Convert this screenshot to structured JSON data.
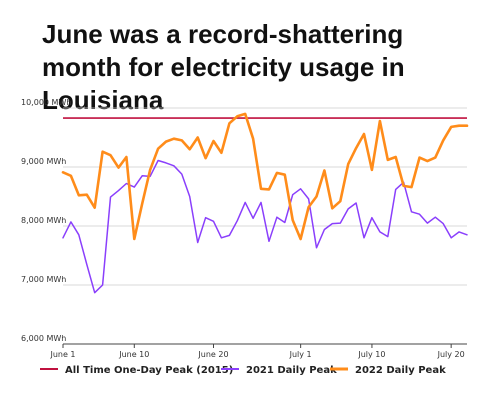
{
  "chart_data": {
    "type": "line",
    "title": "June was a record-shattering month for electricity usage in Louisiana",
    "xlabel": "",
    "ylabel": "",
    "x_ticks": [
      "June 1",
      "June 10",
      "June 20",
      "July 1",
      "July 10",
      "July 20"
    ],
    "x_tick_days": [
      1,
      10,
      20,
      31,
      40,
      50
    ],
    "x_range": [
      0,
      51
    ],
    "y_ticks": [
      "6,000 MWh",
      "7,000 MWh",
      "8,000 MWh",
      "9,000 MWh",
      "10,000 MWh"
    ],
    "y_tick_values": [
      6000,
      7000,
      8000,
      9000,
      10000
    ],
    "ylim": [
      6000,
      10000
    ],
    "grid": true,
    "legend_position": "bottom",
    "reference_line": {
      "name": "All Time One-Day Peak (2015)",
      "value": 9830,
      "color": "#c0113f"
    },
    "series": [
      {
        "name": "2021 Daily Peak",
        "color": "#8a3ffc",
        "x": [
          0,
          1,
          2,
          3,
          4,
          5,
          6,
          7,
          8,
          9,
          10,
          11,
          12,
          13,
          14,
          15,
          16,
          17,
          18,
          19,
          20,
          21,
          22,
          23,
          24,
          25,
          26,
          27,
          28,
          29,
          30,
          31,
          32,
          33,
          34,
          35,
          36,
          37,
          38,
          39,
          40,
          41,
          42,
          43,
          44,
          45,
          46,
          47,
          48,
          49,
          50,
          51
        ],
        "values": [
          7800,
          8070,
          7850,
          7350,
          6870,
          7000,
          8490,
          8600,
          8720,
          8660,
          8850,
          8840,
          9110,
          9070,
          9020,
          8880,
          8500,
          7720,
          8140,
          8080,
          7800,
          7840,
          8090,
          8400,
          8130,
          8400,
          7740,
          8150,
          8060,
          8530,
          8630,
          8460,
          7630,
          7940,
          8040,
          8050,
          8290,
          8390,
          7800,
          8140,
          7900,
          7820,
          8620,
          8740,
          8240,
          8200,
          8050,
          8150,
          8040,
          7800,
          7900,
          7850
        ]
      },
      {
        "name": "2022 Daily Peak",
        "color": "#ff8c1a",
        "x": [
          0,
          1,
          2,
          3,
          4,
          5,
          6,
          7,
          8,
          9,
          10,
          11,
          12,
          13,
          14,
          15,
          16,
          17,
          18,
          19,
          20,
          21,
          22,
          23,
          24,
          25,
          26,
          27,
          28,
          29,
          30,
          31,
          32,
          33,
          34,
          35,
          36,
          37,
          38,
          39,
          40,
          41,
          42,
          43,
          44,
          45,
          46,
          47,
          48,
          49,
          50,
          51
        ],
        "values": [
          8910,
          8850,
          8520,
          8530,
          8310,
          9260,
          9200,
          8990,
          9170,
          7780,
          8380,
          8950,
          9310,
          9430,
          9480,
          9450,
          9300,
          9500,
          9150,
          9440,
          9240,
          9740,
          9860,
          9900,
          9480,
          8630,
          8620,
          8900,
          8870,
          8100,
          7780,
          8320,
          8500,
          8940,
          8300,
          8420,
          9050,
          9320,
          9560,
          8950,
          9780,
          9120,
          9170,
          8680,
          8660,
          9160,
          9100,
          9160,
          9450,
          9680,
          9700,
          9700
        ]
      }
    ]
  }
}
